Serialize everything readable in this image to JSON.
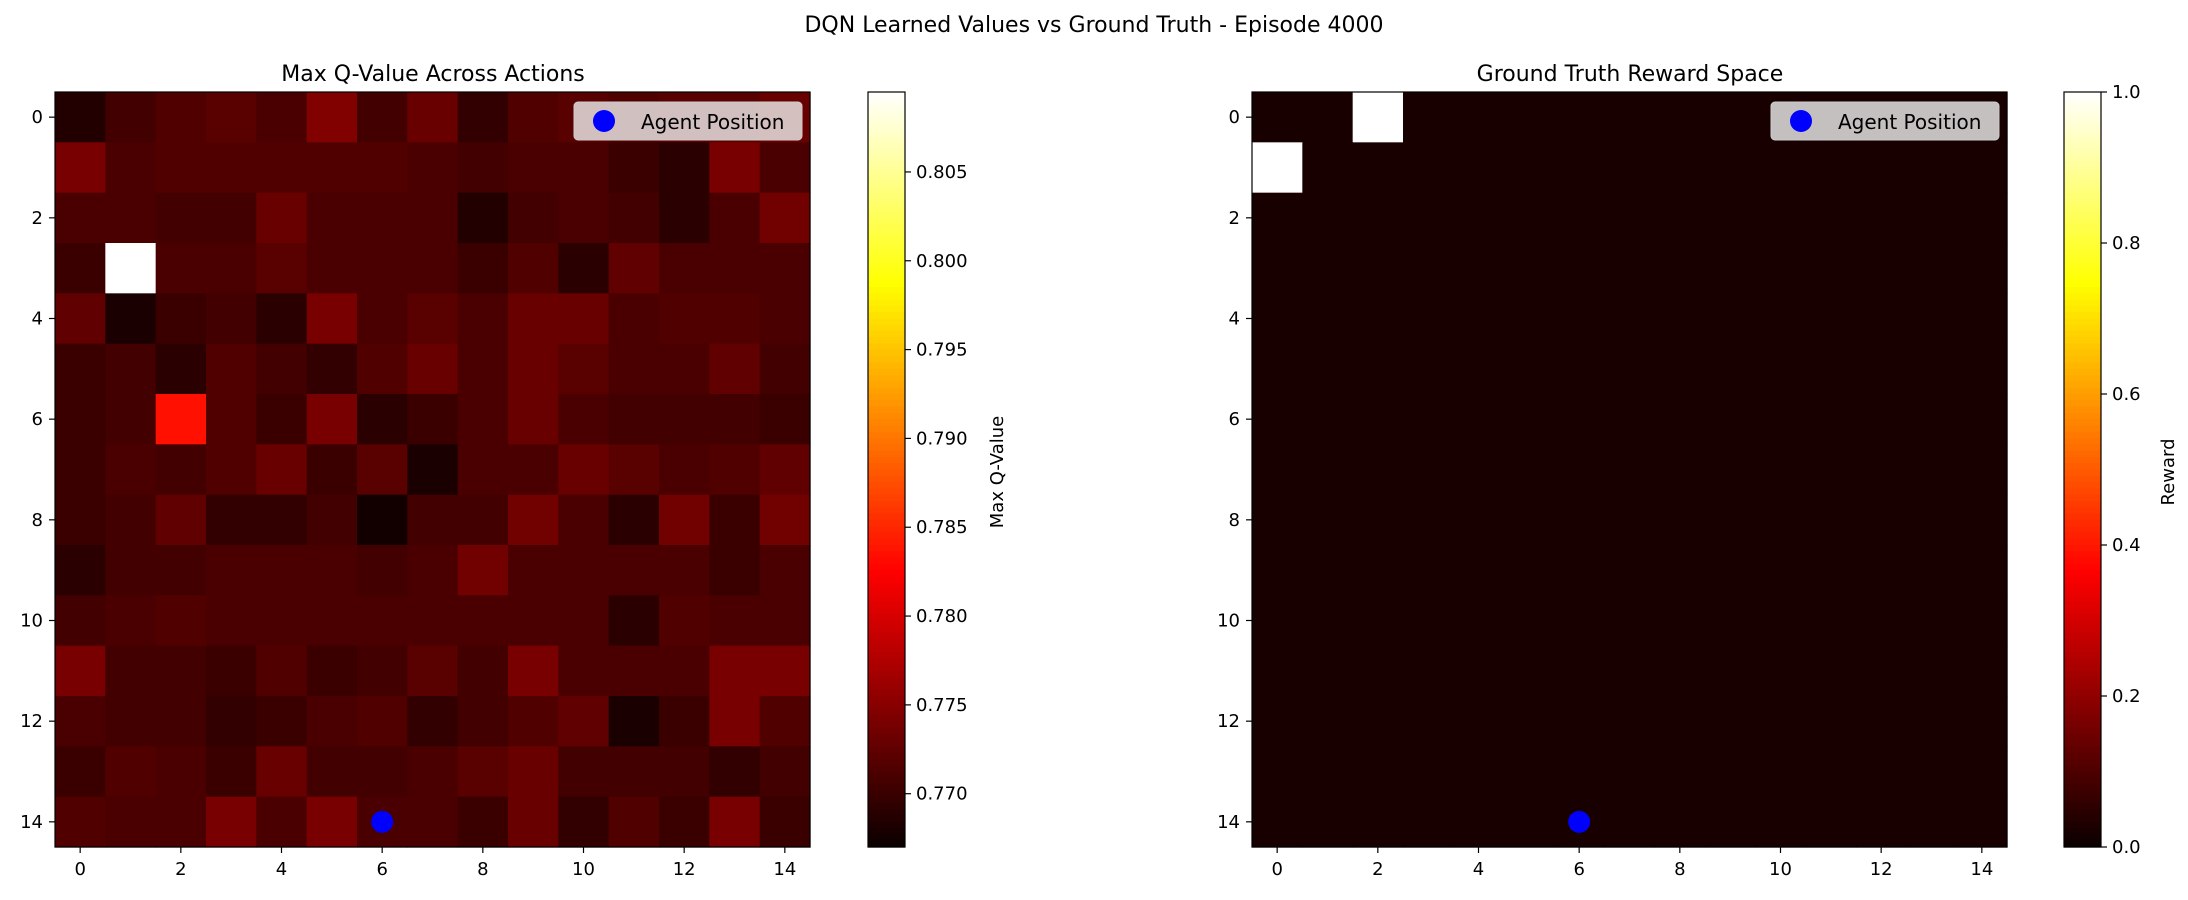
{
  "suptitle": "DQN Learned Values vs Ground Truth - Episode 4000",
  "chart_data": [
    {
      "type": "heatmap",
      "title": "Max Q-Value Across Actions",
      "grid_size": 15,
      "x_ticks": [
        0,
        2,
        4,
        6,
        8,
        10,
        12,
        14
      ],
      "y_ticks": [
        0,
        2,
        4,
        6,
        8,
        10,
        12,
        14
      ],
      "colormap": "hot",
      "colorbar": {
        "label": "Max Q-Value",
        "min": 0.767,
        "max": 0.8095,
        "ticks": [
          0.77,
          0.775,
          0.78,
          0.785,
          0.79,
          0.795,
          0.8,
          0.805
        ],
        "tick_labels": [
          "0.770",
          "0.775",
          "0.780",
          "0.785",
          "0.790",
          "0.795",
          "0.800",
          "0.805"
        ]
      },
      "legend": {
        "entry": "Agent Position",
        "placement": "upper-right",
        "marker_color": "#0000ff"
      },
      "agent": {
        "row": 14,
        "col": 6
      },
      "values": [
        [
          0.7685,
          0.7705,
          0.7715,
          0.772,
          0.771,
          0.7745,
          0.7705,
          0.773,
          0.7695,
          0.7715,
          0.772,
          0.7715,
          0.772,
          0.772,
          0.773
        ],
        [
          0.774,
          0.771,
          0.7715,
          0.7715,
          0.7715,
          0.7715,
          0.7715,
          0.771,
          0.7705,
          0.771,
          0.771,
          0.77,
          0.769,
          0.774,
          0.771
        ],
        [
          0.771,
          0.771,
          0.7705,
          0.7705,
          0.773,
          0.771,
          0.771,
          0.771,
          0.7685,
          0.7705,
          0.771,
          0.7705,
          0.769,
          0.771,
          0.7735
        ],
        [
          0.77,
          0.8095,
          0.771,
          0.771,
          0.772,
          0.771,
          0.771,
          0.771,
          0.77,
          0.7715,
          0.769,
          0.7725,
          0.771,
          0.771,
          0.771
        ],
        [
          0.7725,
          0.768,
          0.77,
          0.7705,
          0.769,
          0.774,
          0.771,
          0.772,
          0.771,
          0.773,
          0.773,
          0.771,
          0.7715,
          0.7715,
          0.771
        ],
        [
          0.77,
          0.7705,
          0.769,
          0.7715,
          0.7705,
          0.7695,
          0.7715,
          0.773,
          0.771,
          0.773,
          0.772,
          0.771,
          0.771,
          0.7725,
          0.7705
        ],
        [
          0.77,
          0.7705,
          0.7835,
          0.7715,
          0.77,
          0.774,
          0.769,
          0.77,
          0.771,
          0.773,
          0.771,
          0.7705,
          0.7705,
          0.7705,
          0.77
        ],
        [
          0.77,
          0.771,
          0.7705,
          0.7715,
          0.773,
          0.77,
          0.772,
          0.768,
          0.771,
          0.771,
          0.773,
          0.772,
          0.771,
          0.7715,
          0.7725
        ],
        [
          0.77,
          0.7705,
          0.7725,
          0.7695,
          0.7695,
          0.7705,
          0.7675,
          0.7705,
          0.7705,
          0.7735,
          0.771,
          0.769,
          0.7735,
          0.77,
          0.7735
        ],
        [
          0.769,
          0.7705,
          0.7705,
          0.771,
          0.771,
          0.771,
          0.7705,
          0.771,
          0.7735,
          0.771,
          0.771,
          0.771,
          0.771,
          0.77,
          0.771
        ],
        [
          0.7705,
          0.771,
          0.7715,
          0.771,
          0.771,
          0.771,
          0.771,
          0.771,
          0.771,
          0.771,
          0.771,
          0.769,
          0.7715,
          0.771,
          0.771
        ],
        [
          0.774,
          0.7705,
          0.7705,
          0.77,
          0.7715,
          0.77,
          0.7705,
          0.772,
          0.7705,
          0.774,
          0.771,
          0.771,
          0.771,
          0.774,
          0.774
        ],
        [
          0.771,
          0.7705,
          0.7705,
          0.7695,
          0.77,
          0.771,
          0.7715,
          0.7695,
          0.7705,
          0.7715,
          0.7725,
          0.768,
          0.77,
          0.774,
          0.7715
        ],
        [
          0.77,
          0.7715,
          0.771,
          0.77,
          0.773,
          0.7705,
          0.7705,
          0.771,
          0.772,
          0.773,
          0.7705,
          0.7705,
          0.7705,
          0.7695,
          0.7705
        ],
        [
          0.7715,
          0.771,
          0.771,
          0.774,
          0.771,
          0.774,
          0.771,
          0.771,
          0.77,
          0.773,
          0.7695,
          0.7715,
          0.77,
          0.774,
          0.77
        ]
      ]
    },
    {
      "type": "heatmap",
      "title": "Ground Truth Reward Space",
      "grid_size": 15,
      "x_ticks": [
        0,
        2,
        4,
        6,
        8,
        10,
        12,
        14
      ],
      "y_ticks": [
        0,
        2,
        4,
        6,
        8,
        10,
        12,
        14
      ],
      "colormap": "hot",
      "colorbar": {
        "label": "Reward",
        "min": 0.0,
        "max": 1.0,
        "ticks": [
          0.0,
          0.2,
          0.4,
          0.6,
          0.8,
          1.0
        ],
        "tick_labels": [
          "0.0",
          "0.2",
          "0.4",
          "0.6",
          "0.8",
          "1.0"
        ]
      },
      "legend": {
        "entry": "Agent Position",
        "placement": "upper-right",
        "marker_color": "#0000ff"
      },
      "agent": {
        "row": 14,
        "col": 6
      },
      "background_value": 0.02,
      "reward_cells": [
        {
          "row": 0,
          "col": 2,
          "value": 1.0
        },
        {
          "row": 1,
          "col": 0,
          "value": 1.0
        }
      ]
    }
  ]
}
